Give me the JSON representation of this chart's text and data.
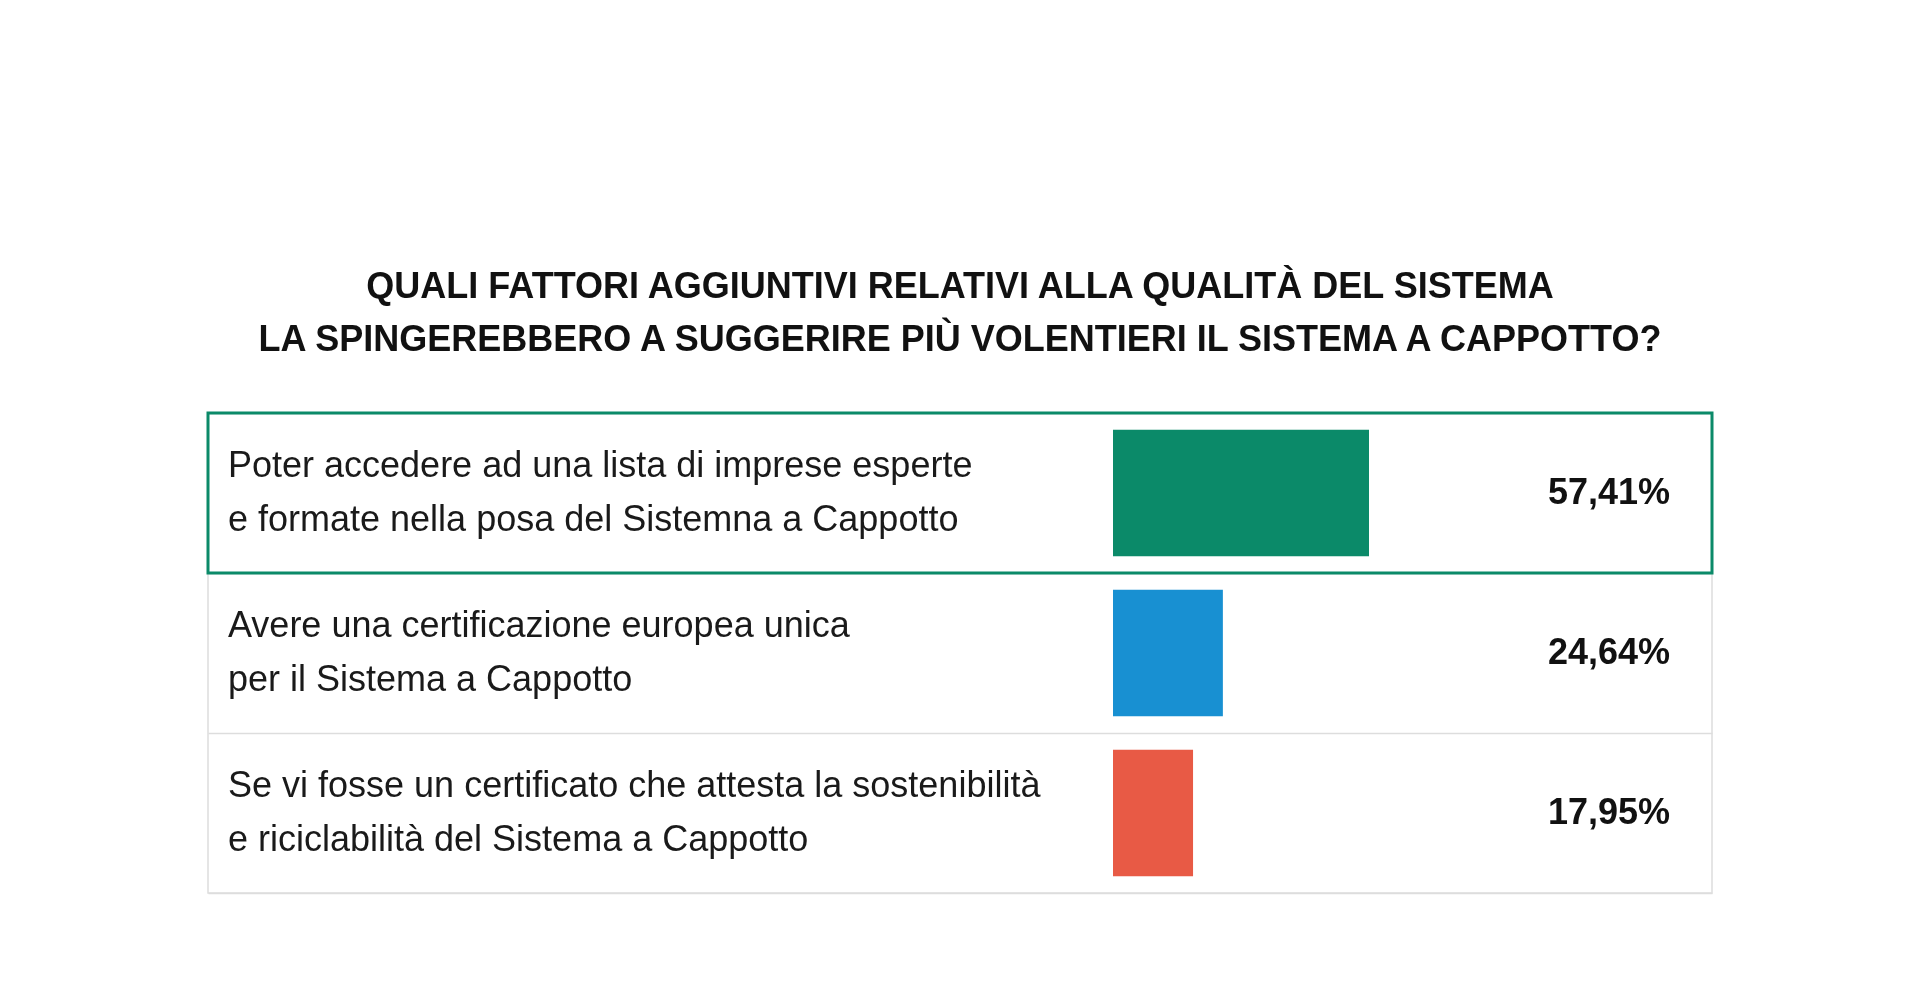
{
  "chart_data": {
    "type": "bar",
    "orientation": "horizontal",
    "title": "QUALI FATTORI AGGIUNTIVI RELATIVI ALLA QUALITÀ DEL SISTEMA\nLA SPINGEREBBERO A SUGGERIRE PIÙ VOLENTIERI IL SISTEMA A CAPPOTTO?",
    "categories": [
      "Poter accedere ad una lista di imprese esperte\ne formate nella posa del Sistemna a Cappotto",
      "Avere una certificazione europea unica\nper il Sistema a Cappotto",
      "Se vi fosse un certificato che attesta la sostenibilità\ne riciclabilità del Sistema a Cappotto"
    ],
    "values": [
      57.41,
      24.64,
      17.95
    ],
    "colors": [
      "#0b8a69",
      "#1890d2",
      "#e85a45"
    ],
    "value_labels": [
      "57,41%",
      "24,64%",
      "17,95%"
    ],
    "grid": "y"
  }
}
